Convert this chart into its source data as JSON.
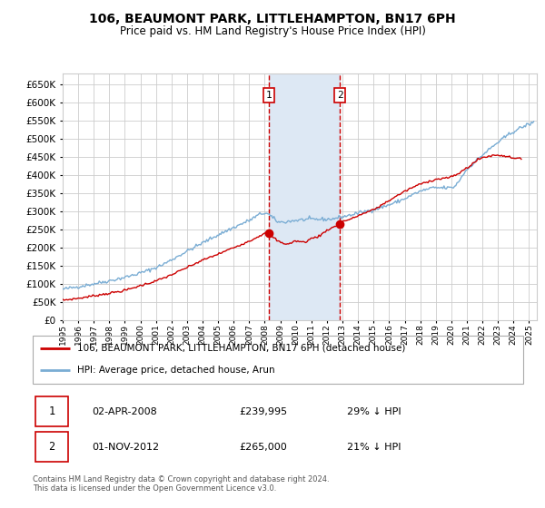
{
  "title": "106, BEAUMONT PARK, LITTLEHAMPTON, BN17 6PH",
  "subtitle": "Price paid vs. HM Land Registry's House Price Index (HPI)",
  "ylim": [
    0,
    680000
  ],
  "yticks": [
    0,
    50000,
    100000,
    150000,
    200000,
    250000,
    300000,
    350000,
    400000,
    450000,
    500000,
    550000,
    600000,
    650000
  ],
  "xlim_start": 1995.0,
  "xlim_end": 2025.5,
  "purchase1_date": 2008.25,
  "purchase1_value": 239995,
  "purchase2_date": 2012.83,
  "purchase2_value": 265000,
  "purchase1_label": "1",
  "purchase2_label": "2",
  "legend1": "106, BEAUMONT PARK, LITTLEHAMPTON, BN17 6PH (detached house)",
  "legend2": "HPI: Average price, detached house, Arun",
  "table_row1_num": "1",
  "table_row1_date": "02-APR-2008",
  "table_row1_price": "£239,995",
  "table_row1_hpi": "29% ↓ HPI",
  "table_row2_num": "2",
  "table_row2_date": "01-NOV-2012",
  "table_row2_price": "£265,000",
  "table_row2_hpi": "21% ↓ HPI",
  "footnote": "Contains HM Land Registry data © Crown copyright and database right 2024.\nThis data is licensed under the Open Government Licence v3.0.",
  "line_color_price": "#cc0000",
  "line_color_hpi": "#7aadd4",
  "shaded_color": "#dde8f4",
  "vline_color": "#cc0000",
  "grid_color": "#cccccc",
  "bg_color": "#ffffff",
  "hpi_key_years": [
    1995,
    1997,
    1999,
    2001,
    2003,
    2005,
    2007,
    2008,
    2009,
    2010,
    2011,
    2012,
    2013,
    2014,
    2015,
    2016,
    2017,
    2018,
    2019,
    2020,
    2021,
    2022,
    2023,
    2024,
    2025.3
  ],
  "hpi_key_vals": [
    85000,
    100000,
    118000,
    145000,
    190000,
    235000,
    275000,
    295000,
    270000,
    275000,
    278000,
    278000,
    285000,
    295000,
    305000,
    318000,
    335000,
    355000,
    365000,
    365000,
    415000,
    455000,
    490000,
    520000,
    545000
  ],
  "price_key_years": [
    1995,
    1996,
    1997,
    1998,
    1999,
    2000,
    2001,
    2002,
    2003,
    2004,
    2005,
    2006,
    2007,
    2008.25,
    2008.5,
    2009,
    2009.5,
    2010,
    2010.5,
    2011,
    2011.5,
    2012,
    2012.83,
    2013,
    2013.5,
    2014,
    2015,
    2016,
    2017,
    2018,
    2019,
    2020,
    2021,
    2022,
    2023,
    2024,
    2024.5
  ],
  "price_key_vals": [
    55000,
    60000,
    67000,
    74000,
    82000,
    95000,
    108000,
    125000,
    145000,
    165000,
    182000,
    200000,
    218000,
    239995,
    230000,
    215000,
    210000,
    218000,
    215000,
    225000,
    232000,
    248000,
    265000,
    272000,
    278000,
    288000,
    305000,
    330000,
    355000,
    375000,
    388000,
    395000,
    420000,
    448000,
    455000,
    448000,
    445000
  ],
  "hpi_noise_seed": 42,
  "price_noise_seed": 7
}
